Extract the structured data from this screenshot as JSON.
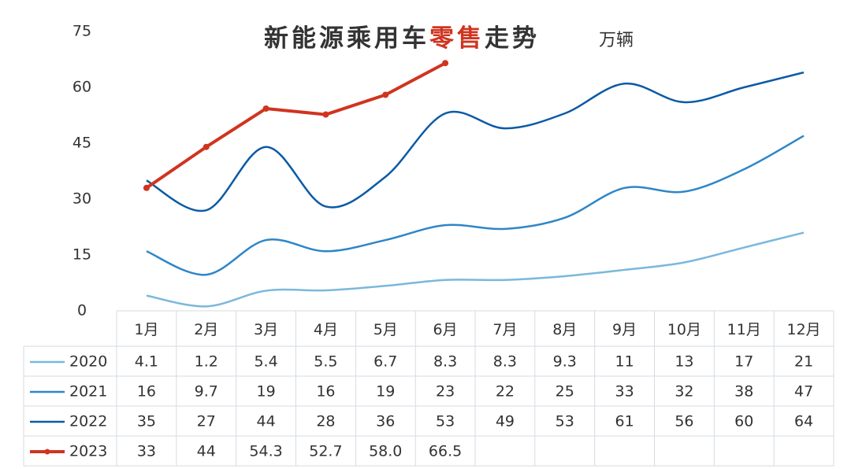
{
  "chart_data": {
    "type": "line",
    "title": [
      "新能源乘用车",
      "零售",
      "走势"
    ],
    "title_colors": [
      "#333333",
      "#d0341f",
      "#333333"
    ],
    "unit": "万辆",
    "categories": [
      "1月",
      "2月",
      "3月",
      "4月",
      "5月",
      "6月",
      "7月",
      "8月",
      "9月",
      "10月",
      "11月",
      "12月"
    ],
    "ylim": [
      0,
      75
    ],
    "yticks": [
      0,
      15,
      30,
      45,
      60,
      75
    ],
    "series": [
      {
        "name": "2020",
        "color": "#7ab8dc",
        "smooth": true,
        "values": [
          4.1,
          1.2,
          5.4,
          5.5,
          6.7,
          8.3,
          8.3,
          9.3,
          11,
          13,
          17,
          21
        ]
      },
      {
        "name": "2021",
        "color": "#2e86c8",
        "smooth": true,
        "values": [
          16,
          9.7,
          19,
          16,
          19,
          23,
          22,
          25,
          33,
          32,
          38,
          47
        ]
      },
      {
        "name": "2022",
        "color": "#0b5aa5",
        "smooth": true,
        "values": [
          35,
          27,
          44,
          28,
          36,
          53,
          49,
          53,
          61,
          56,
          60,
          64
        ]
      },
      {
        "name": "2023",
        "color": "#d0341f",
        "smooth": false,
        "markers": true,
        "values": [
          33,
          44,
          54.3,
          52.7,
          58.0,
          66.5,
          null,
          null,
          null,
          null,
          null,
          null
        ],
        "value_labels": [
          "33",
          "44",
          "54.3",
          "52.7",
          "58.0",
          "66.5",
          null,
          null,
          null,
          null,
          null,
          null
        ]
      }
    ]
  }
}
